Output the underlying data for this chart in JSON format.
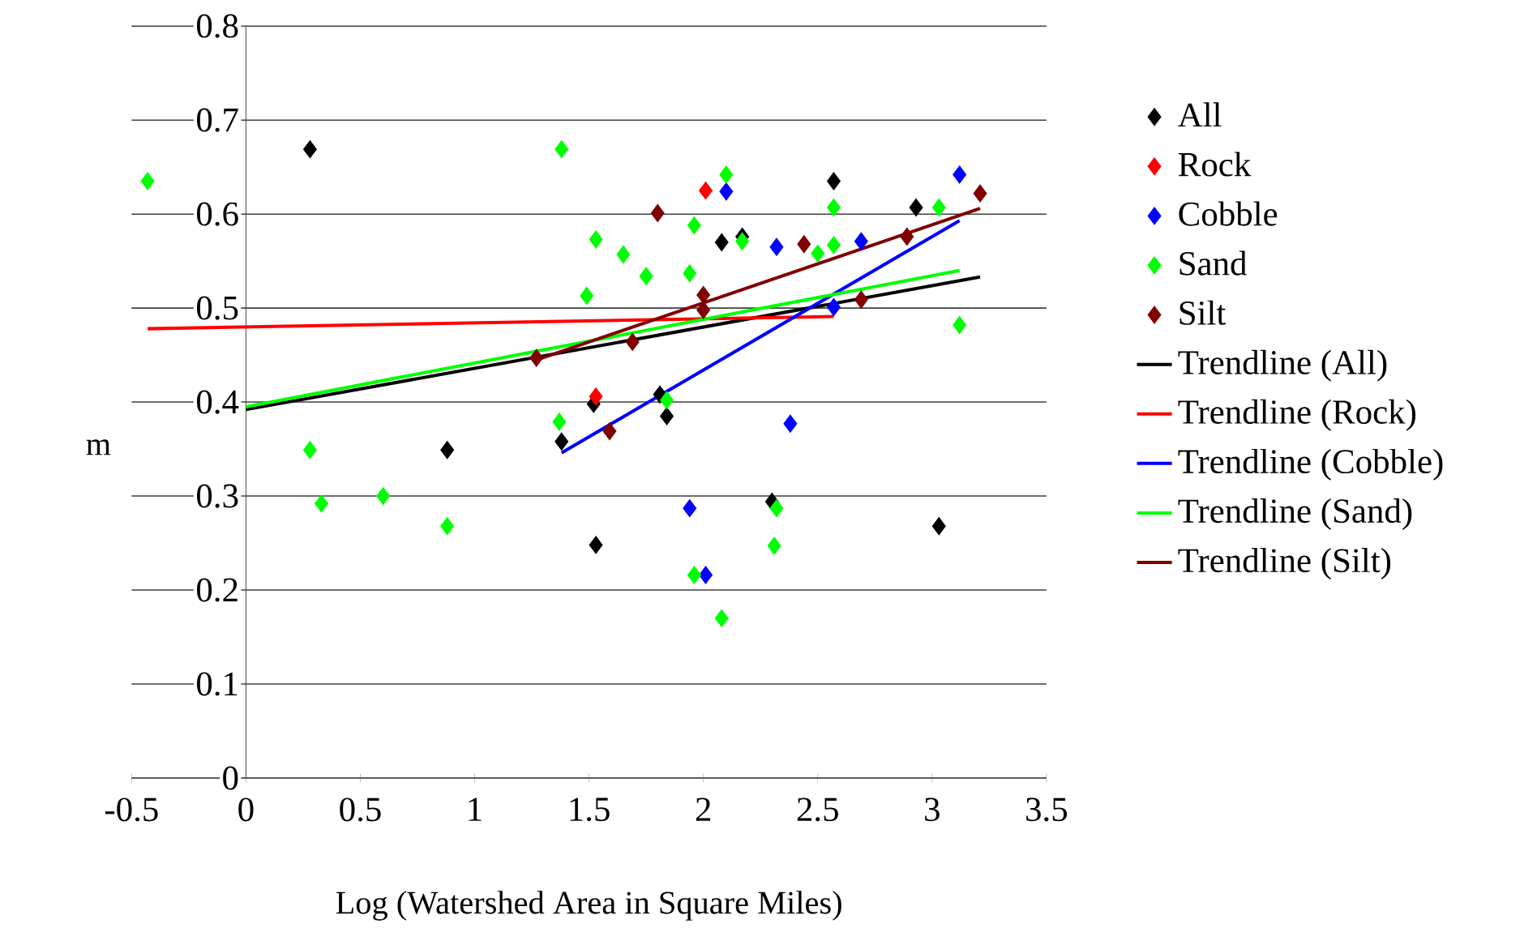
{
  "chart_data": {
    "type": "scatter",
    "xlabel": "Log (Watershed Area in Square Miles)",
    "ylabel": "m",
    "xlim": [
      -0.5,
      3.5
    ],
    "ylim": [
      0,
      0.8
    ],
    "xticks": [
      -0.5,
      0,
      0.5,
      1,
      1.5,
      2,
      2.5,
      3,
      3.5
    ],
    "yticks": [
      0,
      0.1,
      0.2,
      0.3,
      0.4,
      0.5,
      0.6,
      0.7,
      0.8
    ],
    "grid": "y",
    "legend": "right",
    "marker": "diamond",
    "series": [
      {
        "name": "All",
        "color": "#000000",
        "x": [
          0.28,
          0.88,
          1.38,
          1.53,
          1.52,
          1.81,
          1.84,
          2.08,
          2.17,
          2.3,
          2.57,
          2.93,
          3.03
        ],
        "values": [
          0.669,
          0.349,
          0.358,
          0.248,
          0.398,
          0.408,
          0.385,
          0.57,
          0.576,
          0.294,
          0.635,
          0.607,
          0.268
        ]
      },
      {
        "name": "Rock",
        "color": "#ff0000",
        "x": [
          1.53,
          2.01
        ],
        "values": [
          0.406,
          0.625
        ]
      },
      {
        "name": "Cobble",
        "color": "#0000ff",
        "x": [
          1.94,
          2.01,
          2.1,
          2.32,
          2.38,
          2.57,
          2.69,
          3.12
        ],
        "values": [
          0.287,
          0.216,
          0.624,
          0.565,
          0.377,
          0.501,
          0.571,
          0.642
        ]
      },
      {
        "name": "Sand",
        "color": "#00ff00",
        "x": [
          -0.43,
          0.28,
          0.33,
          0.6,
          0.88,
          1.37,
          1.38,
          1.49,
          1.53,
          1.65,
          1.75,
          1.84,
          1.94,
          1.96,
          1.96,
          2.08,
          2.1,
          2.17,
          2.31,
          2.32,
          2.5,
          2.57,
          2.57,
          3.03,
          3.12
        ],
        "values": [
          0.635,
          0.349,
          0.292,
          0.3,
          0.268,
          0.379,
          0.669,
          0.513,
          0.573,
          0.557,
          0.534,
          0.402,
          0.537,
          0.588,
          0.216,
          0.17,
          0.642,
          0.571,
          0.247,
          0.287,
          0.558,
          0.567,
          0.607,
          0.607,
          0.482
        ]
      },
      {
        "name": "Silt",
        "color": "#800000",
        "x": [
          1.27,
          1.59,
          1.69,
          1.8,
          2.0,
          2.0,
          2.44,
          2.69,
          2.89,
          3.21
        ],
        "values": [
          0.447,
          0.369,
          0.464,
          0.601,
          0.514,
          0.498,
          0.568,
          0.509,
          0.576,
          0.622
        ]
      },
      {
        "name": "Trendline (All)",
        "type": "line",
        "marker": "none",
        "color": "#000000",
        "x": [
          0,
          3.21
        ],
        "values": [
          0.392,
          0.533
        ]
      },
      {
        "name": "Trendline (Rock)",
        "type": "line",
        "marker": "none",
        "color": "#ff0000",
        "x": [
          -0.43,
          2.57
        ],
        "values": [
          0.478,
          0.491
        ]
      },
      {
        "name": "Trendline (Cobble)",
        "type": "line",
        "marker": "none",
        "color": "#0000ff",
        "x": [
          1.38,
          3.12
        ],
        "values": [
          0.346,
          0.593
        ]
      },
      {
        "name": "Trendline (Sand)",
        "type": "line",
        "marker": "none",
        "color": "#00ff00",
        "x": [
          0,
          3.12
        ],
        "values": [
          0.395,
          0.54
        ]
      },
      {
        "name": "Trendline (Silt)",
        "type": "line",
        "marker": "none",
        "color": "#800000",
        "x": [
          1.26,
          3.21
        ],
        "values": [
          0.444,
          0.606
        ]
      }
    ]
  }
}
